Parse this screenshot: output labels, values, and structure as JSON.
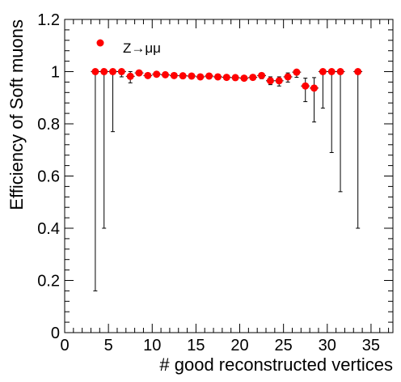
{
  "chart_data": {
    "type": "scatter",
    "title": "",
    "xlabel": "# good reconstructed vertices",
    "ylabel": "Efficiency of Soft muons",
    "xlim": [
      0,
      37.5
    ],
    "ylim": [
      0,
      1.2
    ],
    "x_ticks": [
      "0",
      "5",
      "10",
      "15",
      "20",
      "25",
      "30",
      "35"
    ],
    "y_ticks": [
      "0",
      "0.2",
      "0.4",
      "0.6",
      "0.8",
      "1",
      "1.2"
    ],
    "grid": false,
    "legend_position": "top-left",
    "series": [
      {
        "name": "Z→μμ",
        "color": "#ff0000",
        "marker": "circle",
        "x_halfwidth": 0.5,
        "points": [
          {
            "x": 3.5,
            "y": 1.0,
            "err_low": 0.84,
            "err_high": 0.0
          },
          {
            "x": 4.5,
            "y": 1.0,
            "err_low": 0.6,
            "err_high": 0.0
          },
          {
            "x": 5.5,
            "y": 1.0,
            "err_low": 0.23,
            "err_high": 0.0
          },
          {
            "x": 6.5,
            "y": 1.0,
            "err_low": 0.02,
            "err_high": 0.0
          },
          {
            "x": 7.5,
            "y": 0.982,
            "err_low": 0.025,
            "err_high": 0.018
          },
          {
            "x": 8.5,
            "y": 0.995,
            "err_low": 0.01,
            "err_high": 0.005
          },
          {
            "x": 9.5,
            "y": 0.985,
            "err_low": 0.008,
            "err_high": 0.008
          },
          {
            "x": 10.5,
            "y": 0.99,
            "err_low": 0.006,
            "err_high": 0.006
          },
          {
            "x": 11.5,
            "y": 0.988,
            "err_low": 0.005,
            "err_high": 0.005
          },
          {
            "x": 12.5,
            "y": 0.985,
            "err_low": 0.005,
            "err_high": 0.005
          },
          {
            "x": 13.5,
            "y": 0.984,
            "err_low": 0.005,
            "err_high": 0.005
          },
          {
            "x": 14.5,
            "y": 0.983,
            "err_low": 0.005,
            "err_high": 0.005
          },
          {
            "x": 15.5,
            "y": 0.98,
            "err_low": 0.006,
            "err_high": 0.006
          },
          {
            "x": 16.5,
            "y": 0.983,
            "err_low": 0.006,
            "err_high": 0.006
          },
          {
            "x": 17.5,
            "y": 0.98,
            "err_low": 0.007,
            "err_high": 0.007
          },
          {
            "x": 18.5,
            "y": 0.978,
            "err_low": 0.008,
            "err_high": 0.008
          },
          {
            "x": 19.5,
            "y": 0.977,
            "err_low": 0.008,
            "err_high": 0.008
          },
          {
            "x": 20.5,
            "y": 0.975,
            "err_low": 0.009,
            "err_high": 0.009
          },
          {
            "x": 21.5,
            "y": 0.978,
            "err_low": 0.01,
            "err_high": 0.01
          },
          {
            "x": 22.5,
            "y": 0.985,
            "err_low": 0.012,
            "err_high": 0.01
          },
          {
            "x": 23.5,
            "y": 0.965,
            "err_low": 0.015,
            "err_high": 0.015
          },
          {
            "x": 24.5,
            "y": 0.965,
            "err_low": 0.02,
            "err_high": 0.015
          },
          {
            "x": 25.5,
            "y": 0.98,
            "err_low": 0.02,
            "err_high": 0.015
          },
          {
            "x": 26.5,
            "y": 0.998,
            "err_low": 0.02,
            "err_high": 0.002
          },
          {
            "x": 27.5,
            "y": 0.945,
            "err_low": 0.06,
            "err_high": 0.03
          },
          {
            "x": 28.5,
            "y": 0.937,
            "err_low": 0.13,
            "err_high": 0.04
          },
          {
            "x": 29.5,
            "y": 1.0,
            "err_low": 0.14,
            "err_high": 0.0
          },
          {
            "x": 30.5,
            "y": 1.0,
            "err_low": 0.31,
            "err_high": 0.0
          },
          {
            "x": 31.5,
            "y": 1.0,
            "err_low": 0.46,
            "err_high": 0.0
          },
          {
            "x": 33.5,
            "y": 1.0,
            "err_low": 0.6,
            "err_high": 0.0
          }
        ]
      }
    ]
  }
}
